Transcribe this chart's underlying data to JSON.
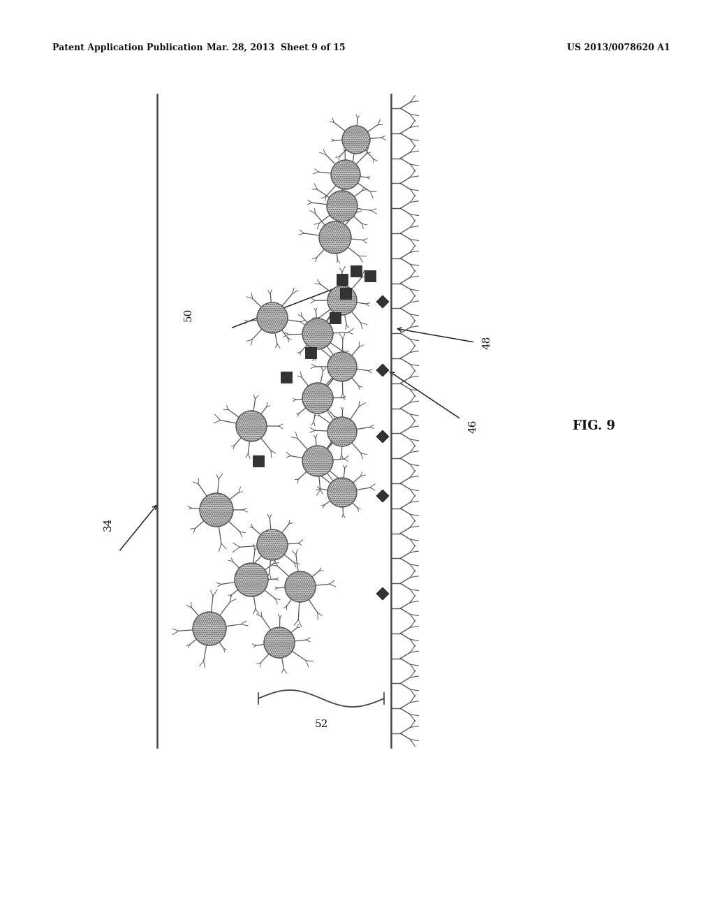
{
  "bg_color": "#ffffff",
  "header_left": "Patent Application Publication",
  "header_mid": "Mar. 28, 2013  Sheet 9 of 15",
  "header_right": "US 2013/0078620 A1",
  "fig_label": "FIG. 9",
  "label_34": "34",
  "label_46": "46",
  "label_48": "48",
  "label_50": "50",
  "label_52": "52",
  "wall_color": "#444444",
  "cell_color": "#cccccc",
  "cell_edge": "#555555",
  "diamond_color": "#333333",
  "line_color": "#444444"
}
